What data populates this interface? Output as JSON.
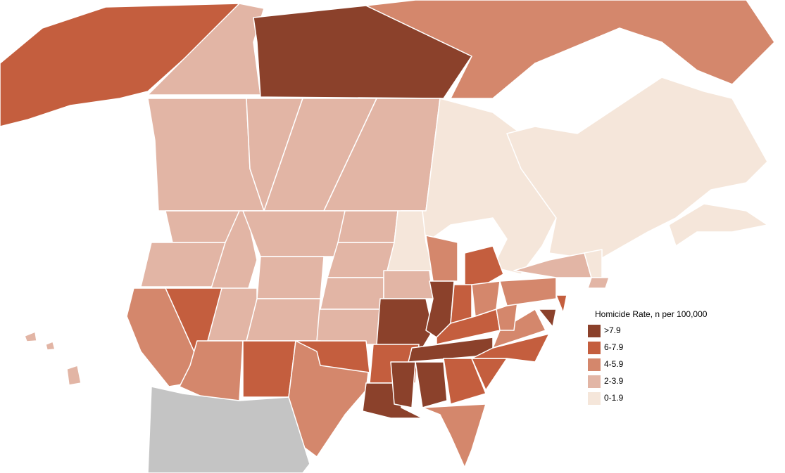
{
  "legend": {
    "title": "Homicide Rate, n per 100,000",
    "items": [
      {
        "label": ">7.9",
        "color": "#8b412b"
      },
      {
        "label": "6-7.9",
        "color": "#c45e3e"
      },
      {
        "label": "4-5.9",
        "color": "#d4876c"
      },
      {
        "label": "2-3.9",
        "color": "#e2b5a5"
      },
      {
        "label": "0-1.9",
        "color": "#f5e6da"
      }
    ]
  },
  "no_data_color": "#c4c4c4"
}
